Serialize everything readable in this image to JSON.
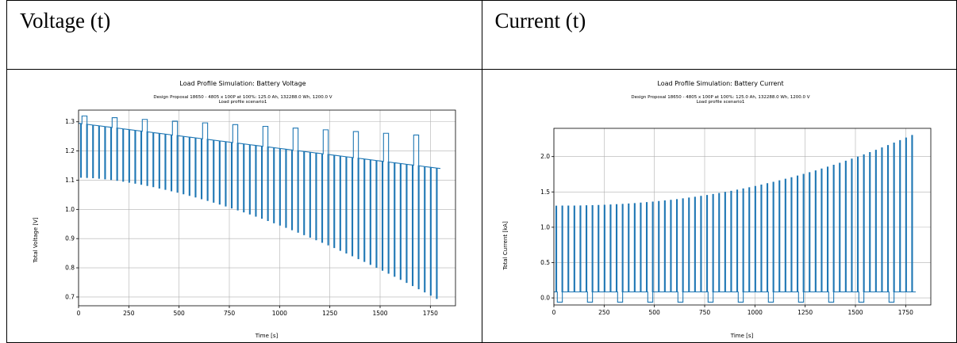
{
  "table": {
    "headers": [
      "Voltage (t)",
      "Current (t)"
    ]
  },
  "colors": {
    "series": "#1f77b4",
    "grid": "#b0b0b0"
  },
  "chart_data": [
    {
      "type": "line",
      "title": "Load Profile Simulation: Battery Voltage",
      "subtitle_lines": [
        "Design Proposal 18650 - 4805 x 100P at 100%: 125.0 Ah, 132288.0 Wh, 1200.0 V",
        "Load profile scenario1"
      ],
      "xlabel": "Time [s]",
      "ylabel": "Total Voltage [V]",
      "xlim": [
        0,
        1875
      ],
      "ylim": [
        0.67,
        1.34
      ],
      "xticks": [
        0,
        250,
        500,
        750,
        1000,
        1250,
        1500,
        1750
      ],
      "yticks": [
        0.7,
        0.8,
        0.9,
        1.0,
        1.1,
        1.2,
        1.3
      ],
      "grid": true,
      "baseline": {
        "x": [
          0,
          1800
        ],
        "y": [
          1.295,
          1.14
        ]
      },
      "pulses": {
        "start": 10,
        "spacing": 30,
        "count": 60,
        "low_at_start": 1.11,
        "low_at_end": 0.695,
        "high_at_start": 1.32,
        "high_at_end": 1.25,
        "high_every": 5,
        "high_width": 25
      }
    },
    {
      "type": "line",
      "title": "Load Profile Simulation: Battery Current",
      "subtitle_lines": [
        "Design Proposal 18650 - 4805 x 100P at 100%: 125.0 Ah, 132288.0 Wh, 1200.0 V",
        "Load profile scenario1"
      ],
      "xlabel": "Time [s]",
      "ylabel": "Total Current [kA]",
      "xlim": [
        0,
        1875
      ],
      "ylim": [
        -0.1,
        2.4
      ],
      "xticks": [
        0,
        250,
        500,
        750,
        1000,
        1250,
        1500,
        1750
      ],
      "yticks": [
        0.0,
        0.5,
        1.0,
        1.5,
        2.0
      ],
      "grid": true,
      "baseline": {
        "x": [
          0,
          1800
        ],
        "y": [
          0.085,
          0.085
        ]
      },
      "pulses": {
        "start": 10,
        "spacing": 30,
        "count": 60,
        "peak_at_start": 1.3,
        "peak_at_end": 2.3,
        "negative_level": -0.06,
        "negative_every": 5,
        "negative_width": 25
      }
    }
  ]
}
